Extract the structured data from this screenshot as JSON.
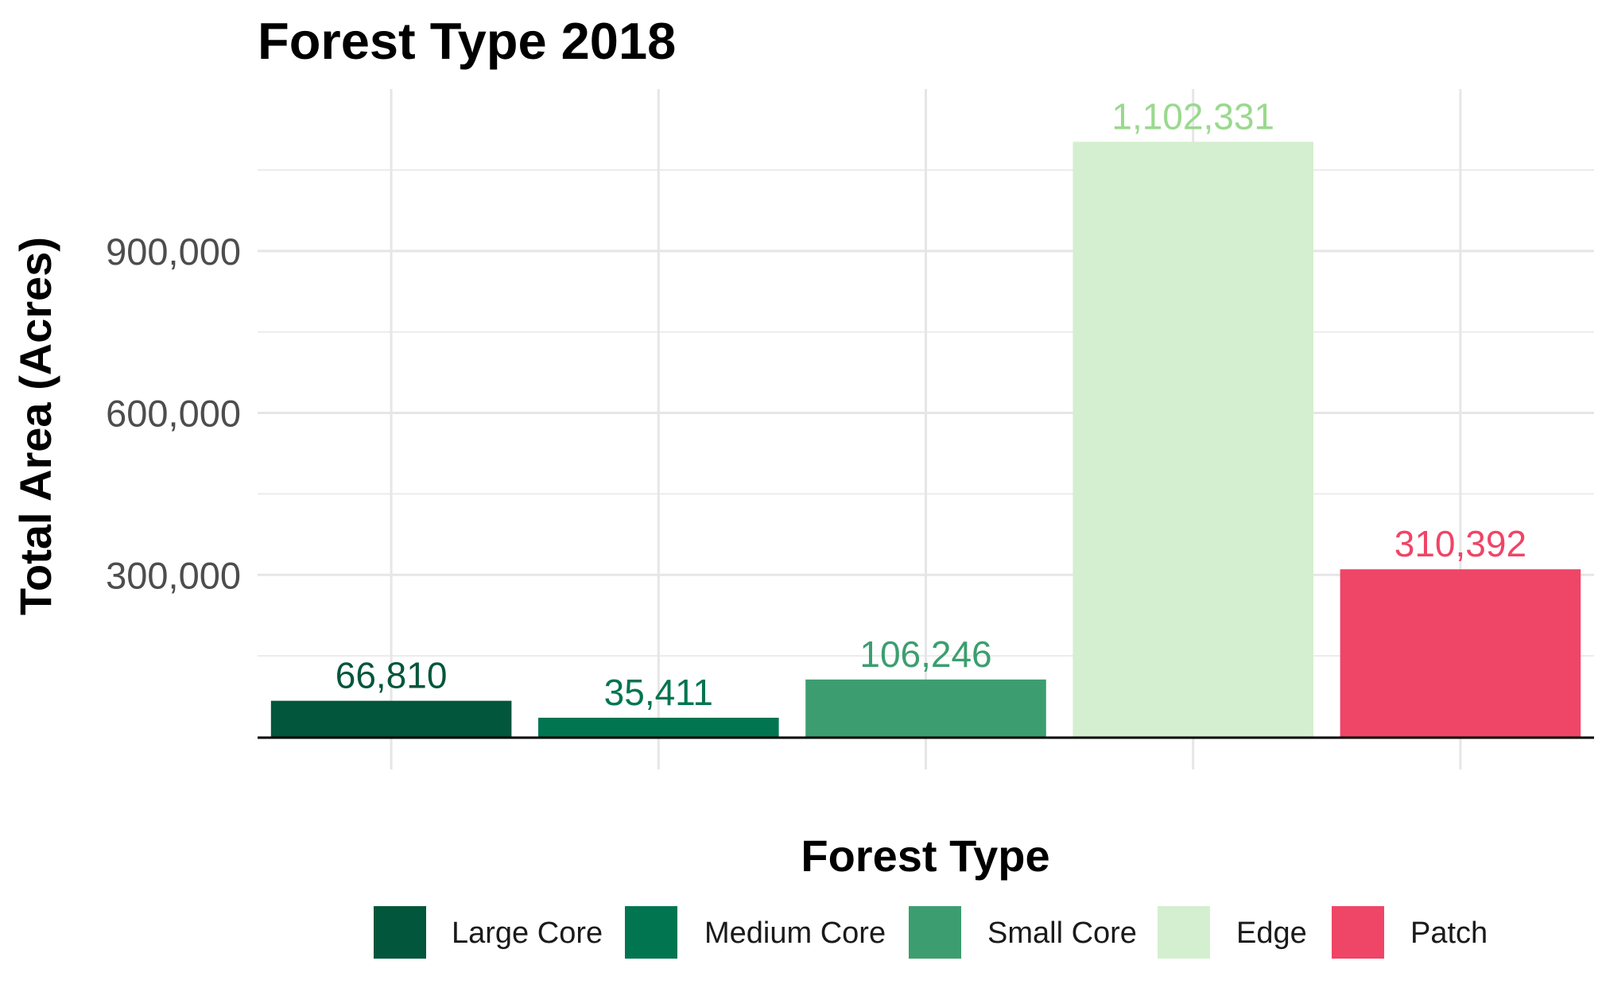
{
  "chart_data": {
    "type": "bar",
    "title": "Forest Type 2018",
    "xlabel": "Forest Type",
    "ylabel": "Total Area (Acres)",
    "categories": [
      "Large Core",
      "Medium Core",
      "Small Core",
      "Edge",
      "Patch"
    ],
    "values": [
      66810,
      35411,
      106246,
      1102331,
      310392
    ],
    "data_labels": [
      "66,810",
      "35,411",
      "106,246",
      "1,102,331",
      "310,392"
    ],
    "colors": [
      "#02563b",
      "#017550",
      "#3c9e70",
      "#d4efcf",
      "#ef4567"
    ],
    "label_colors": [
      "#02563b",
      "#017550",
      "#3c9e70",
      "#99d98d",
      "#ef4567"
    ],
    "ylim": [
      0,
      1200000
    ],
    "y_ticks": [
      300000,
      600000,
      900000
    ],
    "y_tick_labels": [
      "300,000",
      "600,000",
      "900,000"
    ],
    "y_minor_ticks": [
      150000,
      450000,
      750000,
      1050000
    ],
    "grid": true,
    "x_tick_labels_shown": false,
    "legend": {
      "position": "bottom",
      "entries": [
        "Large Core",
        "Medium Core",
        "Small Core",
        "Edge",
        "Patch"
      ]
    }
  }
}
